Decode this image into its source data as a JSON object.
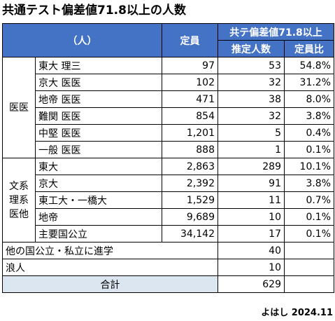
{
  "title": "共通テスト偏差値71.8以上の人数",
  "headers": {
    "person": "（人）",
    "capacity": "定員",
    "exam_group": "共テ偏差値71.8以上",
    "estimated": "推定人数",
    "ratio": "定員比"
  },
  "groups": [
    {
      "label": "医医",
      "rows": [
        {
          "name": "東大 理三",
          "capacity": "97",
          "estimated": "53",
          "ratio": "54.8%"
        },
        {
          "name": "京大 医医",
          "capacity": "102",
          "estimated": "32",
          "ratio": "31.2%"
        },
        {
          "name": "地帝 医医",
          "capacity": "471",
          "estimated": "38",
          "ratio": "8.0%"
        },
        {
          "name": "難関 医医",
          "capacity": "854",
          "estimated": "32",
          "ratio": "3.8%"
        },
        {
          "name": "中堅 医医",
          "capacity": "1,201",
          "estimated": "5",
          "ratio": "0.4%"
        },
        {
          "name": "一般 医医",
          "capacity": "888",
          "estimated": "1",
          "ratio": "0.1%"
        }
      ]
    },
    {
      "label": "文系\n理系\n医他",
      "rows": [
        {
          "name": "東大",
          "capacity": "2,863",
          "estimated": "289",
          "ratio": "10.1%"
        },
        {
          "name": "京大",
          "capacity": "2,392",
          "estimated": "91",
          "ratio": "3.8%"
        },
        {
          "name": "東工大・一橋大",
          "capacity": "1,529",
          "estimated": "11",
          "ratio": "0.7%"
        },
        {
          "name": "地帝",
          "capacity": "9,689",
          "estimated": "10",
          "ratio": "0.1%"
        },
        {
          "name": "主要国公立",
          "capacity": "34,142",
          "estimated": "17",
          "ratio": "0.1%"
        }
      ]
    }
  ],
  "other_rows": [
    {
      "label": "他の国公立・私立に進学",
      "estimated": "40"
    },
    {
      "label": "浪人",
      "estimated": "10"
    }
  ],
  "total": {
    "label": "合計",
    "estimated": "629"
  },
  "footer": "よはし 2024.11"
}
